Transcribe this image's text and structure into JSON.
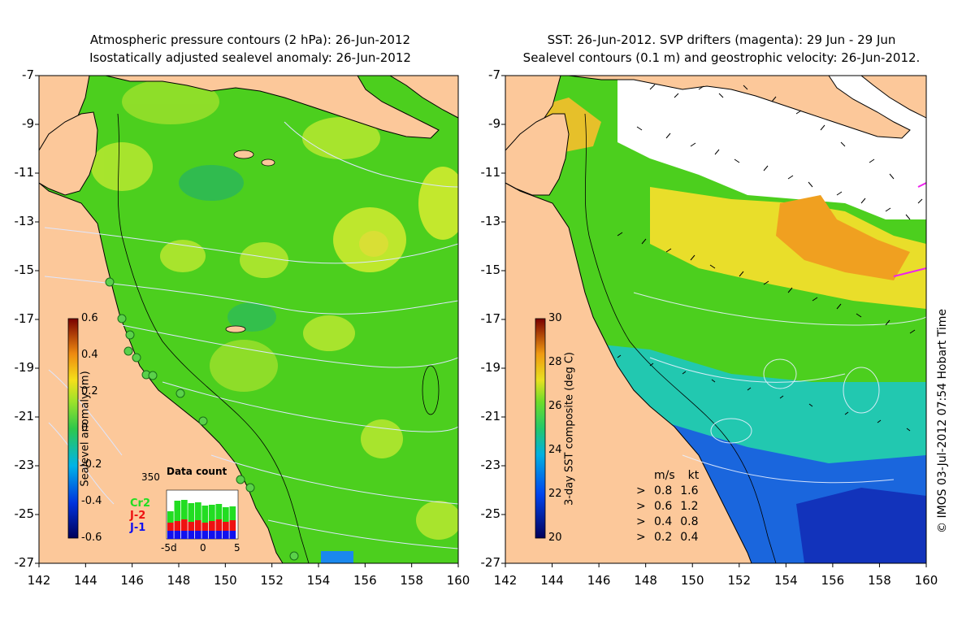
{
  "left_panel": {
    "title_line1": "Atmospheric pressure contours (2 hPa): 26-Jun-2012",
    "title_line2": "Isostatically adjusted sealevel anomaly: 26-Jun-2012",
    "colorbar": {
      "label": "Sealevel anomaly (m)",
      "ticks": [
        "0.6",
        "0.4",
        "0.2",
        "0",
        "-0.2",
        "-0.4",
        "-0.6"
      ]
    },
    "data_count": {
      "title": "Data count",
      "max_label": "350",
      "legend": [
        {
          "label": "Cr2",
          "color": "#22dd22"
        },
        {
          "label": "J-2",
          "color": "#ee1111"
        },
        {
          "label": "J-1",
          "color": "#1111ee"
        }
      ],
      "x_ticks": [
        "-5d",
        "0",
        "5"
      ]
    }
  },
  "right_panel": {
    "title_line1": "SST: 26-Jun-2012. SVP drifters (magenta): 29 Jun - 29 Jun",
    "title_line2": "Sealevel contours (0.1 m) and geostrophic velocity: 26-Jun-2012.",
    "colorbar": {
      "label": "3-day SST composite (deg C)",
      "ticks": [
        "30",
        "28",
        "26",
        "24",
        "22",
        "20"
      ]
    },
    "velocity_legend": {
      "header_ms": "m/s",
      "header_kt": "kt",
      "rows": [
        {
          "ms": "0.8",
          "kt": "1.6"
        },
        {
          "ms": "0.6",
          "kt": "1.2"
        },
        {
          "ms": "0.4",
          "kt": "0.8"
        },
        {
          "ms": "0.2",
          "kt": "0.4"
        }
      ]
    }
  },
  "axes": {
    "y_ticks": [
      "-7",
      "-9",
      "-11",
      "-13",
      "-15",
      "-17",
      "-19",
      "-21",
      "-23",
      "-25",
      "-27"
    ],
    "x_ticks": [
      "142",
      "144",
      "146",
      "148",
      "150",
      "152",
      "154",
      "156",
      "158",
      "160"
    ]
  },
  "credit": "© IMOS 03-Jul-2012 07:54 Hobart Time",
  "colors": {
    "land": "#fcc89a",
    "ocean_green": "#4ccf1e",
    "ocean_yellow": "#c8ee30",
    "sst_blue": "#1a66dd",
    "sst_orange": "#f0a020"
  }
}
